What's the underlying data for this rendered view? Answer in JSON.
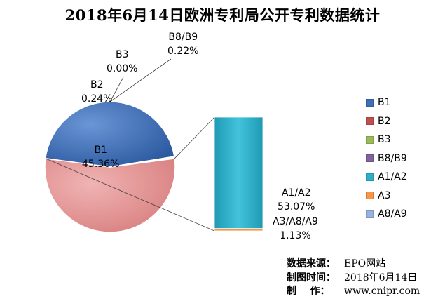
{
  "title": "2018年6月14日欧洲专利局公开专利数据统计",
  "chart_data": {
    "type": "pie",
    "subtype": "bar-of-pie",
    "categories": [
      "B1",
      "B2",
      "B3",
      "B8/B9",
      "A1/A2",
      "A3",
      "A8/A9"
    ],
    "values": [
      45.36,
      0.24,
      0.0,
      0.22,
      53.07,
      1.13,
      0.0
    ],
    "colors": [
      "#3f6fb5",
      "#c0504d",
      "#9bbb59",
      "#8064a2",
      "#2fb0c8",
      "#f79646",
      "#98b4de"
    ],
    "secondary_slice_color": "#e69a9a",
    "data_labels": [
      {
        "name": "B1",
        "value": "45.36%"
      },
      {
        "name": "B2",
        "value": "0.24%"
      },
      {
        "name": "B3",
        "value": "0.00%"
      },
      {
        "name": "B8/B9",
        "value": "0.22%"
      },
      {
        "name": "A1/A2",
        "value": "53.07%"
      },
      {
        "name": "A3/A8/A9",
        "value": "1.13%"
      }
    ],
    "legend_position": "right"
  },
  "source": {
    "rows": [
      {
        "key": "数据来源：",
        "value": "EPO网站"
      },
      {
        "key": "制图时间：",
        "value": "2018年6月14日"
      },
      {
        "key": "制    作：",
        "value": "www.cnipr.com"
      }
    ]
  }
}
